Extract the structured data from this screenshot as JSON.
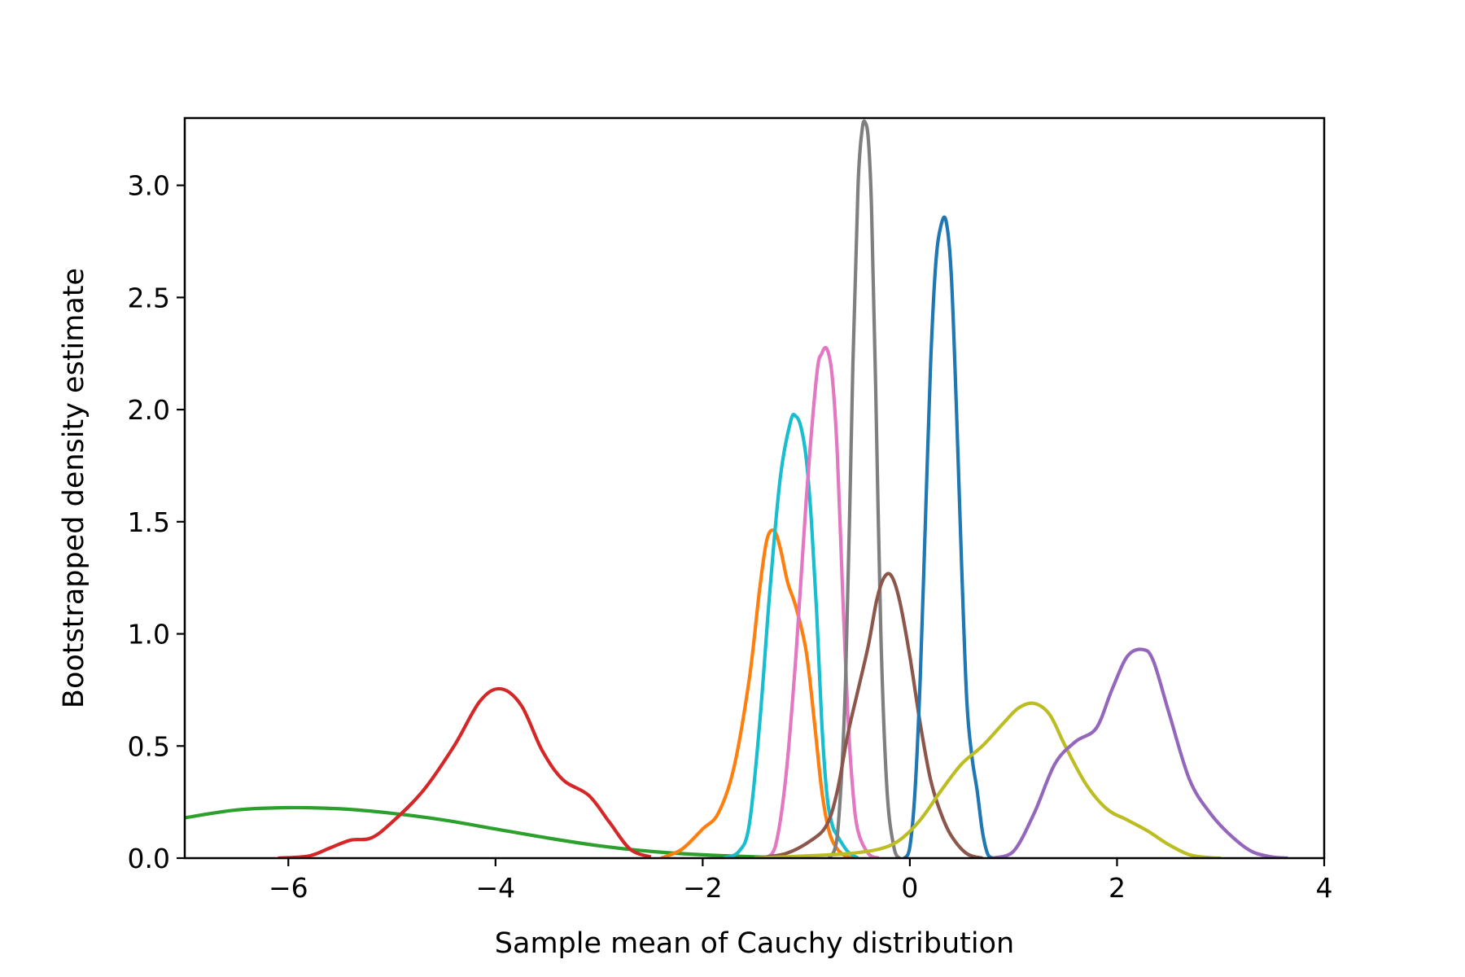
{
  "chart_data": {
    "type": "line",
    "title": "",
    "xlabel": "Sample mean of Cauchy distribution",
    "ylabel": "Bootstrapped density estimate",
    "xlim": [
      -7,
      4
    ],
    "ylim": [
      0,
      3.3
    ],
    "xticks": [
      -6,
      -4,
      -2,
      0,
      2,
      4
    ],
    "xtick_labels": [
      "−6",
      "−4",
      "−2",
      "0",
      "2",
      "4"
    ],
    "yticks": [
      0.0,
      0.5,
      1.0,
      1.5,
      2.0,
      2.5,
      3.0
    ],
    "ytick_labels": [
      "0.0",
      "0.5",
      "1.0",
      "1.5",
      "2.0",
      "2.5",
      "3.0"
    ],
    "grid": false,
    "legend": "none",
    "series": [
      {
        "color": "#2ca02c",
        "x": [
          -7.0,
          -6.5,
          -6.0,
          -5.5,
          -5.0,
          -4.5,
          -4.0,
          -3.5,
          -3.0,
          -2.5,
          -2.0,
          -1.5,
          -1.2
        ],
        "y": [
          0.18,
          0.215,
          0.225,
          0.22,
          0.2,
          0.17,
          0.13,
          0.09,
          0.055,
          0.03,
          0.015,
          0.006,
          0.003
        ]
      },
      {
        "color": "#d62728",
        "x": [
          -6.1,
          -5.8,
          -5.6,
          -5.4,
          -5.2,
          -5.0,
          -4.7,
          -4.4,
          -4.15,
          -3.95,
          -3.75,
          -3.55,
          -3.35,
          -3.1,
          -2.9,
          -2.7,
          -2.5
        ],
        "y": [
          0.0,
          0.01,
          0.045,
          0.08,
          0.09,
          0.16,
          0.3,
          0.5,
          0.7,
          0.755,
          0.68,
          0.48,
          0.35,
          0.28,
          0.16,
          0.04,
          0.005
        ]
      },
      {
        "color": "#ff7f0e",
        "x": [
          -2.4,
          -2.2,
          -2.0,
          -1.85,
          -1.7,
          -1.55,
          -1.45,
          -1.38,
          -1.31,
          -1.25,
          -1.18,
          -1.1,
          -1.0,
          -0.92,
          -0.85,
          -0.78,
          -0.7,
          -0.6,
          -0.5
        ],
        "y": [
          0.0,
          0.04,
          0.13,
          0.2,
          0.4,
          0.8,
          1.2,
          1.42,
          1.46,
          1.38,
          1.23,
          1.12,
          0.92,
          0.6,
          0.3,
          0.12,
          0.04,
          0.005,
          0.0
        ]
      },
      {
        "color": "#17becf",
        "x": [
          -1.8,
          -1.65,
          -1.55,
          -1.45,
          -1.35,
          -1.25,
          -1.15,
          -1.1,
          -1.05,
          -1.0,
          -0.95,
          -0.9,
          -0.85,
          -0.8,
          -0.75,
          -0.7,
          -0.6,
          -0.5
        ],
        "y": [
          0.0,
          0.03,
          0.15,
          0.6,
          1.2,
          1.7,
          1.95,
          1.97,
          1.92,
          1.78,
          1.5,
          1.1,
          0.6,
          0.28,
          0.15,
          0.1,
          0.03,
          0.0
        ]
      },
      {
        "color": "#e377c2",
        "x": [
          -1.4,
          -1.3,
          -1.2,
          -1.1,
          -1.0,
          -0.9,
          -0.85,
          -0.8,
          -0.75,
          -0.7,
          -0.65,
          -0.6,
          -0.55,
          -0.5,
          -0.4,
          -0.3
        ],
        "y": [
          0.0,
          0.05,
          0.35,
          0.9,
          1.6,
          2.15,
          2.25,
          2.27,
          2.15,
          1.8,
          1.2,
          0.65,
          0.3,
          0.12,
          0.02,
          0.0
        ]
      },
      {
        "color": "#7f7f7f",
        "x": [
          -0.78,
          -0.7,
          -0.62,
          -0.55,
          -0.5,
          -0.46,
          -0.43,
          -0.4,
          -0.37,
          -0.33,
          -0.28,
          -0.22,
          -0.15,
          -0.1
        ],
        "y": [
          0.0,
          0.1,
          0.8,
          2.2,
          3.0,
          3.25,
          3.28,
          3.2,
          2.9,
          2.1,
          1.0,
          0.3,
          0.04,
          0.0
        ]
      },
      {
        "color": "#8c564b",
        "x": [
          -1.5,
          -1.2,
          -0.95,
          -0.8,
          -0.7,
          -0.6,
          -0.5,
          -0.4,
          -0.32,
          -0.25,
          -0.18,
          -0.1,
          0.0,
          0.1,
          0.2,
          0.3,
          0.4,
          0.55,
          0.7
        ],
        "y": [
          0.0,
          0.02,
          0.08,
          0.15,
          0.3,
          0.55,
          0.75,
          0.95,
          1.15,
          1.25,
          1.26,
          1.15,
          0.9,
          0.6,
          0.35,
          0.2,
          0.1,
          0.02,
          0.0
        ]
      },
      {
        "color": "#1f77b4",
        "x": [
          -0.05,
          0.0,
          0.05,
          0.1,
          0.15,
          0.2,
          0.25,
          0.3,
          0.35,
          0.4,
          0.45,
          0.5,
          0.55,
          0.6,
          0.65,
          0.7,
          0.75,
          0.8
        ],
        "y": [
          0.0,
          0.05,
          0.3,
          0.8,
          1.5,
          2.2,
          2.65,
          2.82,
          2.84,
          2.6,
          2.0,
          1.3,
          0.7,
          0.45,
          0.3,
          0.12,
          0.02,
          0.0
        ]
      },
      {
        "color": "#bcbd22",
        "x": [
          -1.5,
          -1.0,
          -0.6,
          -0.3,
          -0.1,
          0.1,
          0.3,
          0.5,
          0.7,
          0.9,
          1.05,
          1.2,
          1.35,
          1.5,
          1.7,
          1.9,
          2.1,
          2.3,
          2.5,
          2.7,
          2.9,
          3.0
        ],
        "y": [
          0.0,
          0.01,
          0.02,
          0.04,
          0.08,
          0.17,
          0.3,
          0.42,
          0.5,
          0.6,
          0.67,
          0.69,
          0.64,
          0.5,
          0.33,
          0.22,
          0.17,
          0.12,
          0.06,
          0.015,
          0.002,
          0.0
        ]
      },
      {
        "color": "#9467bd",
        "x": [
          0.8,
          1.0,
          1.2,
          1.4,
          1.6,
          1.8,
          1.95,
          2.1,
          2.25,
          2.35,
          2.5,
          2.7,
          2.9,
          3.1,
          3.3,
          3.5,
          3.65
        ],
        "y": [
          0.0,
          0.03,
          0.2,
          0.42,
          0.52,
          0.58,
          0.75,
          0.9,
          0.93,
          0.88,
          0.65,
          0.35,
          0.2,
          0.1,
          0.03,
          0.005,
          0.0
        ]
      }
    ]
  }
}
